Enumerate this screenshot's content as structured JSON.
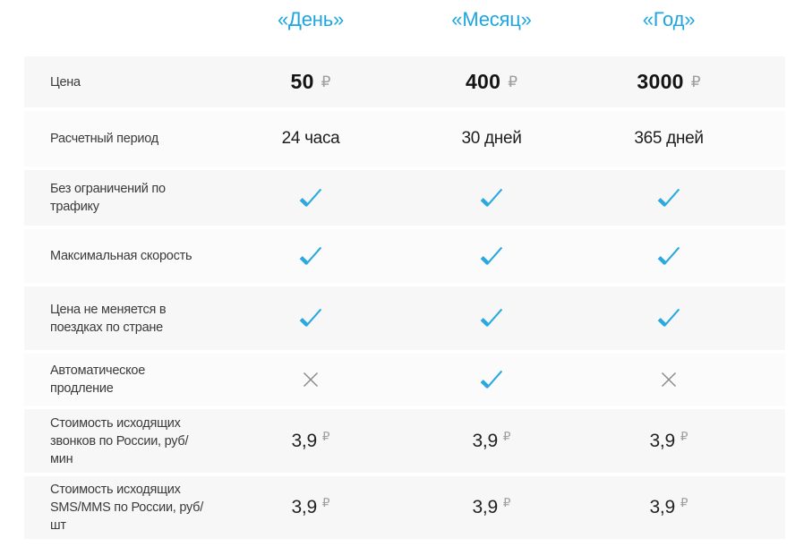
{
  "colors": {
    "accent": "#1da6e0",
    "check": "#29a9e0",
    "cross": "#8b8b8b",
    "row_dark_bg": "#f7f7f7",
    "row_light_bg": "#fbfbfb"
  },
  "table": {
    "columns": [
      "«День»",
      "«Месяц»",
      "«Год»"
    ],
    "column_keys": [
      "day",
      "month",
      "year"
    ],
    "currency_symbol": "₽",
    "rows": [
      {
        "label": "Цена",
        "type": "price",
        "shade": "dark",
        "values": [
          "50",
          "400",
          "3000"
        ]
      },
      {
        "label": "Расчетный период",
        "type": "text",
        "shade": "light",
        "values": [
          "24 часа",
          "30 дней",
          "365 дней"
        ]
      },
      {
        "label": "Без ограничений по трафику",
        "type": "bool",
        "shade": "dark",
        "values": [
          true,
          true,
          true
        ]
      },
      {
        "label": "Максимальная скорость",
        "type": "bool",
        "shade": "light",
        "values": [
          true,
          true,
          true
        ]
      },
      {
        "label": "Цена не меняется в поездках по стране",
        "type": "bool",
        "shade": "dark",
        "values": [
          true,
          true,
          true
        ]
      },
      {
        "label": "Автоматическое продление",
        "type": "bool",
        "shade": "light",
        "values": [
          false,
          true,
          false
        ]
      },
      {
        "label": "Стоимость исходящих звонков по России, руб/мин",
        "type": "price_small",
        "shade": "dark",
        "values": [
          "3,9",
          "3,9",
          "3,9"
        ]
      },
      {
        "label": "Стоимость исходящих SMS/MMS по России, руб/шт",
        "type": "price_small",
        "shade": "dark",
        "values": [
          "3,9",
          "3,9",
          "3,9"
        ]
      }
    ]
  }
}
